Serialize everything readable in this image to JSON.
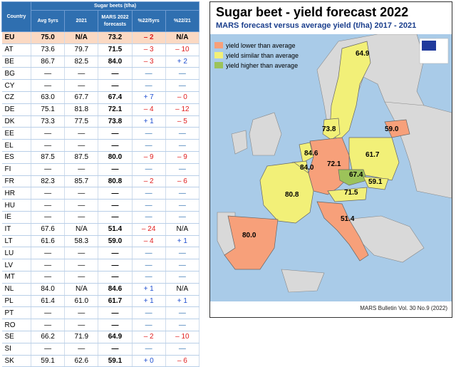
{
  "table": {
    "header_country": "Country",
    "header_group": "Sugar beets (t/ha)",
    "columns": [
      "Avg 5yrs",
      "2021",
      "MARS 2022 forecasts",
      "%22/5yrs",
      "%22/21"
    ],
    "rows": [
      {
        "country": "EU",
        "avg": "75.0",
        "y2021": "N/A",
        "forecast": "73.2",
        "d5": "– 2",
        "d21": "N/A"
      },
      {
        "country": "AT",
        "avg": "73.6",
        "y2021": "79.7",
        "forecast": "71.5",
        "d5": "– 3",
        "d21": "– 10"
      },
      {
        "country": "BE",
        "avg": "86.7",
        "y2021": "82.5",
        "forecast": "84.0",
        "d5": "– 3",
        "d21": "+ 2"
      },
      {
        "country": "BG",
        "avg": "—",
        "y2021": "—",
        "forecast": "—",
        "d5": "—",
        "d21": "—"
      },
      {
        "country": "CY",
        "avg": "—",
        "y2021": "—",
        "forecast": "—",
        "d5": "—",
        "d21": "—"
      },
      {
        "country": "CZ",
        "avg": "63.0",
        "y2021": "67.7",
        "forecast": "67.4",
        "d5": "+ 7",
        "d21": "– 0"
      },
      {
        "country": "DE",
        "avg": "75.1",
        "y2021": "81.8",
        "forecast": "72.1",
        "d5": "– 4",
        "d21": "– 12"
      },
      {
        "country": "DK",
        "avg": "73.3",
        "y2021": "77.5",
        "forecast": "73.8",
        "d5": "+ 1",
        "d21": "– 5"
      },
      {
        "country": "EE",
        "avg": "—",
        "y2021": "—",
        "forecast": "—",
        "d5": "—",
        "d21": "—"
      },
      {
        "country": "EL",
        "avg": "—",
        "y2021": "—",
        "forecast": "—",
        "d5": "—",
        "d21": "—"
      },
      {
        "country": "ES",
        "avg": "87.5",
        "y2021": "87.5",
        "forecast": "80.0",
        "d5": "– 9",
        "d21": "– 9"
      },
      {
        "country": "FI",
        "avg": "—",
        "y2021": "—",
        "forecast": "—",
        "d5": "—",
        "d21": "—"
      },
      {
        "country": "FR",
        "avg": "82.3",
        "y2021": "85.7",
        "forecast": "80.8",
        "d5": "– 2",
        "d21": "– 6"
      },
      {
        "country": "HR",
        "avg": "—",
        "y2021": "—",
        "forecast": "—",
        "d5": "—",
        "d21": "—"
      },
      {
        "country": "HU",
        "avg": "—",
        "y2021": "—",
        "forecast": "—",
        "d5": "—",
        "d21": "—"
      },
      {
        "country": "IE",
        "avg": "—",
        "y2021": "—",
        "forecast": "—",
        "d5": "—",
        "d21": "—"
      },
      {
        "country": "IT",
        "avg": "67.6",
        "y2021": "N/A",
        "forecast": "51.4",
        "d5": "– 24",
        "d21": "N/A"
      },
      {
        "country": "LT",
        "avg": "61.6",
        "y2021": "58.3",
        "forecast": "59.0",
        "d5": "– 4",
        "d21": "+ 1"
      },
      {
        "country": "LU",
        "avg": "—",
        "y2021": "—",
        "forecast": "—",
        "d5": "—",
        "d21": "—"
      },
      {
        "country": "LV",
        "avg": "—",
        "y2021": "—",
        "forecast": "—",
        "d5": "—",
        "d21": "—"
      },
      {
        "country": "MT",
        "avg": "—",
        "y2021": "—",
        "forecast": "—",
        "d5": "—",
        "d21": "—"
      },
      {
        "country": "NL",
        "avg": "84.0",
        "y2021": "N/A",
        "forecast": "84.6",
        "d5": "+ 1",
        "d21": "N/A"
      },
      {
        "country": "PL",
        "avg": "61.4",
        "y2021": "61.0",
        "forecast": "61.7",
        "d5": "+ 1",
        "d21": "+ 1"
      },
      {
        "country": "PT",
        "avg": "—",
        "y2021": "—",
        "forecast": "—",
        "d5": "—",
        "d21": "—"
      },
      {
        "country": "RO",
        "avg": "—",
        "y2021": "—",
        "forecast": "—",
        "d5": "—",
        "d21": "—"
      },
      {
        "country": "SE",
        "avg": "66.2",
        "y2021": "71.9",
        "forecast": "64.9",
        "d5": "– 2",
        "d21": "– 10"
      },
      {
        "country": "SI",
        "avg": "—",
        "y2021": "—",
        "forecast": "—",
        "d5": "—",
        "d21": "—"
      },
      {
        "country": "SK",
        "avg": "59.1",
        "y2021": "62.6",
        "forecast": "59.1",
        "d5": "+ 0",
        "d21": "– 6"
      }
    ]
  },
  "map": {
    "title": "Sugar beet - yield forecast 2022",
    "subtitle": "MARS forecast versus average yield (t/ha) 2017 - 2021",
    "legend": [
      {
        "label": "yield lower than average",
        "color": "#f7a07a"
      },
      {
        "label": "yield similar than average",
        "color": "#f2f078"
      },
      {
        "label": "yield higher than average",
        "color": "#9cc35a"
      }
    ],
    "labels": {
      "SE": "64.9",
      "DK": "73.8",
      "LT": "59.0",
      "NL": "84.6",
      "BE": "84.0",
      "DE": "72.1",
      "PL": "61.7",
      "CZ": "67.4",
      "SK": "59.1",
      "AT": "71.5",
      "FR": "80.8",
      "IT": "51.4",
      "ES": "80.0"
    },
    "bulletin": "MARS Bulletin Vol. 30 No.9 (2022)",
    "colors": {
      "sea": "#a9cbe8",
      "land": "#d9d9d9",
      "lower": "#f7a07a",
      "similar": "#f2f078",
      "higher": "#9cc35a",
      "header": "#2f6fb0"
    }
  }
}
